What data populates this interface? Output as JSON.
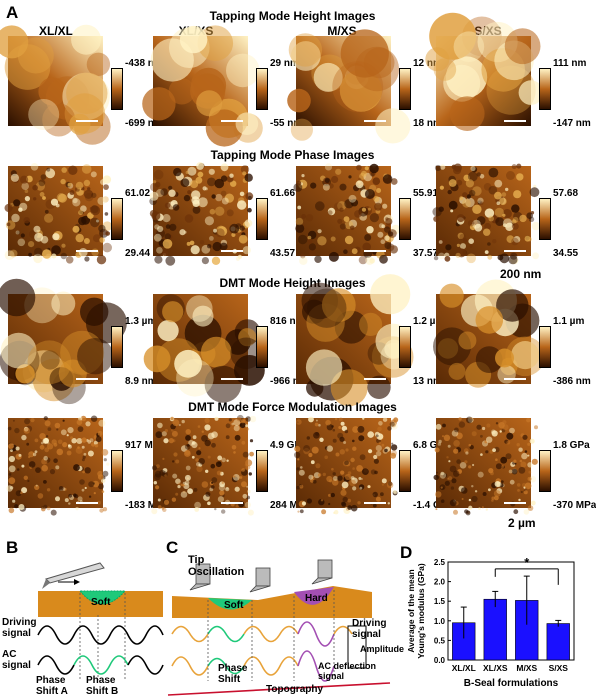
{
  "panel_letters": {
    "a": "A",
    "b": "B",
    "c": "C",
    "d": "D"
  },
  "column_titles": [
    "XL/XL",
    "XL/XS",
    "M/XS",
    "S/XS"
  ],
  "rows": [
    {
      "title": "Tapping Mode Height Images",
      "scales": [
        [
          "-438 nm",
          "-699 nm"
        ],
        [
          "29 nm",
          "-55 nm"
        ],
        [
          "12 nm",
          "18 nm"
        ],
        [
          "111 nm",
          "-147 nm"
        ]
      ]
    },
    {
      "title": "Tapping Mode Phase Images",
      "scales": [
        [
          "61.02",
          "29.44"
        ],
        [
          "61.66",
          "43.57"
        ],
        [
          "55.91",
          "37.57"
        ],
        [
          "57.68",
          "34.55"
        ]
      ]
    },
    {
      "title": "DMT Mode Height Images",
      "scales": [
        [
          "1.3 µm",
          "8.9 nm"
        ],
        [
          "816 nm",
          "-966 nm"
        ],
        [
          "1.2 µm",
          "13 nm"
        ],
        [
          "1.1 µm",
          "-386 nm"
        ]
      ]
    },
    {
      "title": "DMT Mode Force Modulation Images",
      "scales": [
        [
          "917 MPa",
          "-183 MPa"
        ],
        [
          "4.9 GPa",
          "284 MPa"
        ],
        [
          "6.8 GPa",
          "-1.4 GPa"
        ],
        [
          "1.8 GPa",
          "-370 MPa"
        ]
      ]
    }
  ],
  "scale_bars": {
    "nm": "200 nm",
    "um": "2 µm"
  },
  "panel_b": {
    "soft": "Soft",
    "driving": "Driving\nsignal",
    "ac": "AC\nsignal",
    "phase_a": "Phase\nShift A",
    "phase_b": "Phase\nShift B"
  },
  "panel_c": {
    "tip": "Tip\nOscillation",
    "soft": "Soft",
    "hard": "Hard",
    "driving": "Driving\nsignal",
    "amplitude": "Amplitude",
    "phase": "Phase\nShift",
    "acdef": "AC deflection\nsignal",
    "topography": "Topography"
  },
  "colors": {
    "afm_dark": "#2a0f00",
    "afm_mid": "#b8651a",
    "afm_light": "#fff2c4",
    "substrate": "#d98a1c",
    "soft_green": "#1fc97a",
    "hard_purple": "#a34fb3",
    "wave_orange": "#e8a33a",
    "bar_blue": "#1a10ff"
  },
  "chart_data": {
    "type": "bar",
    "categories": [
      "XL/XL",
      "XL/XS",
      "M/XS",
      "S/XS"
    ],
    "values": [
      0.95,
      1.55,
      1.52,
      0.93
    ],
    "errors": [
      0.4,
      0.2,
      0.62,
      0.08
    ],
    "ylim": [
      0,
      2.5
    ],
    "yticks": [
      "0.0",
      "0.5",
      "1.0",
      "1.5",
      "2.0",
      "2.5"
    ],
    "ylabel": "Average of the mean\nYoung's modulus (GPa)",
    "xlabel": "B-Seal formulations",
    "significance": "*",
    "significance_between": [
      1,
      3
    ]
  }
}
